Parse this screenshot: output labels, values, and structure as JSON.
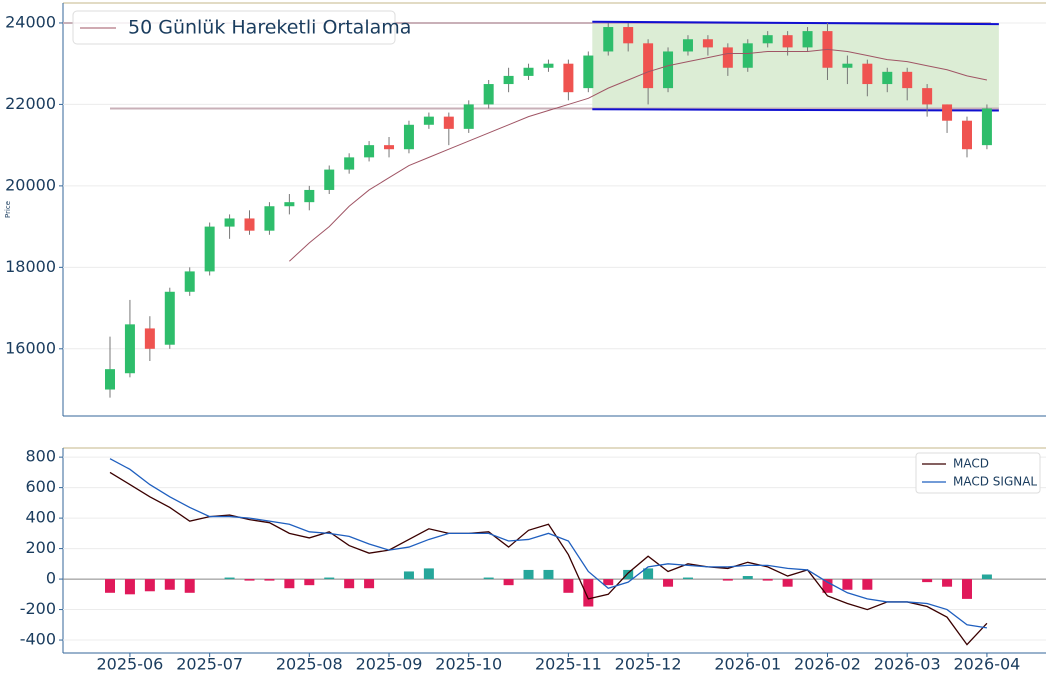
{
  "chart_data": [
    {
      "type": "candlestick",
      "ylabel": "Price",
      "open": [
        15000,
        15400,
        16500,
        16100,
        17400,
        17900,
        19000,
        19200,
        18900,
        19500,
        19600,
        19900,
        20400,
        20700,
        21000,
        20900,
        21500,
        21700,
        21400,
        22000,
        22500,
        22700,
        22900,
        23000,
        22400,
        23300,
        23900,
        23500,
        22400,
        23300,
        23600,
        23400,
        22900,
        23500,
        23700,
        23400,
        23800,
        22900,
        23000,
        22500,
        22800,
        22400,
        22000,
        21600,
        21000
      ],
      "high": [
        16300,
        17200,
        16800,
        17500,
        18000,
        19100,
        19300,
        19400,
        19600,
        19800,
        20000,
        20500,
        20800,
        21100,
        21200,
        21600,
        21800,
        21800,
        22100,
        22600,
        22900,
        23000,
        23100,
        23100,
        23300,
        24000,
        24000,
        23600,
        23400,
        23700,
        23700,
        23500,
        23600,
        23800,
        23800,
        23900,
        24000,
        23200,
        23100,
        22900,
        22900,
        22500,
        22000,
        21700,
        22000
      ],
      "low": [
        14800,
        15300,
        15700,
        16000,
        17300,
        17800,
        18700,
        18800,
        18800,
        19300,
        19400,
        19800,
        20300,
        20600,
        20700,
        20800,
        21400,
        21000,
        21300,
        21900,
        22300,
        22600,
        22800,
        22100,
        22300,
        23200,
        23300,
        22000,
        22300,
        23200,
        23200,
        22700,
        22800,
        23400,
        23200,
        23300,
        22600,
        22500,
        22200,
        22300,
        22100,
        21700,
        21300,
        20700,
        20900
      ],
      "close": [
        15500,
        16600,
        16000,
        17400,
        17900,
        19000,
        19200,
        18900,
        19500,
        19600,
        19900,
        20400,
        20700,
        21000,
        20900,
        21500,
        21700,
        21400,
        22000,
        22500,
        22700,
        22900,
        23000,
        22300,
        23200,
        23900,
        23500,
        22400,
        23300,
        23600,
        23400,
        22900,
        23500,
        23700,
        23400,
        23800,
        22900,
        23000,
        22500,
        22800,
        22400,
        22000,
        21600,
        20900,
        21900
      ],
      "up_color": "#2ebd6b",
      "down_color": "#ef5350",
      "series": [
        {
          "name": "50 Günlük Hareketli Ortalama",
          "color": "#a05565",
          "values": [
            null,
            null,
            null,
            null,
            null,
            null,
            null,
            null,
            null,
            18150,
            18600,
            19000,
            19500,
            19900,
            20200,
            20500,
            20700,
            20900,
            21100,
            21300,
            21500,
            21700,
            21850,
            22000,
            22150,
            22400,
            22600,
            22800,
            22950,
            23050,
            23150,
            23250,
            23250,
            23300,
            23300,
            23300,
            23350,
            23300,
            23200,
            23100,
            23050,
            22950,
            22850,
            22700,
            22600
          ]
        }
      ],
      "hlines": [
        {
          "value": 24000,
          "x": [
            -2.4,
            44.2
          ],
          "color": "#c9b0b8"
        },
        {
          "value": 21900,
          "x": [
            0,
            44.6
          ],
          "color": "#c9b0b8"
        }
      ],
      "channel": {
        "x": [
          24.2,
          44.6
        ],
        "top": [
          24030,
          23970
        ],
        "bottom": [
          21880,
          21850
        ],
        "fill": "#dcedd5",
        "line_color": "#1010d0"
      },
      "ylim": [
        14350,
        24490
      ],
      "yticks": [
        16000,
        18000,
        20000,
        22000,
        24000
      ],
      "grid": true,
      "legend": "upper left"
    },
    {
      "type": "macd",
      "categories": [
        null,
        "2025-06",
        null,
        null,
        null,
        "2025-07",
        null,
        null,
        null,
        null,
        "2025-08",
        null,
        null,
        null,
        "2025-09",
        null,
        null,
        null,
        "2025-10",
        null,
        null,
        null,
        null,
        "2025-11",
        null,
        null,
        null,
        "2025-12",
        null,
        null,
        null,
        null,
        "2026-01",
        null,
        null,
        null,
        "2026-02",
        null,
        null,
        null,
        "2026-03",
        null,
        null,
        null,
        "2026-04"
      ],
      "series": [
        {
          "name": "MACD",
          "color": "#3a0000",
          "values": [
            700,
            620,
            540,
            470,
            380,
            410,
            420,
            390,
            370,
            300,
            270,
            310,
            220,
            170,
            190,
            260,
            330,
            300,
            300,
            310,
            210,
            320,
            360,
            160,
            -130,
            -100,
            40,
            150,
            50,
            100,
            80,
            70,
            110,
            80,
            20,
            60,
            -110,
            -160,
            -200,
            -150,
            -150,
            -180,
            -250,
            -430,
            -290
          ]
        },
        {
          "name": "MACD SIGNAL",
          "color": "#1f5fbf",
          "values": [
            790,
            720,
            620,
            540,
            470,
            410,
            410,
            400,
            380,
            360,
            310,
            300,
            280,
            230,
            190,
            210,
            260,
            300,
            300,
            300,
            250,
            260,
            300,
            250,
            50,
            -60,
            -20,
            80,
            100,
            90,
            80,
            80,
            90,
            90,
            70,
            60,
            -20,
            -90,
            -130,
            -150,
            -150,
            -160,
            -200,
            -300,
            -320
          ]
        }
      ],
      "histogram": {
        "values": [
          -90,
          -100,
          -80,
          -70,
          -90,
          0,
          10,
          -10,
          -10,
          -60,
          -40,
          10,
          -60,
          -60,
          0,
          50,
          70,
          0,
          0,
          10,
          -40,
          60,
          60,
          -90,
          -180,
          -40,
          60,
          70,
          -50,
          10,
          0,
          -10,
          20,
          -10,
          -50,
          0,
          -90,
          -70,
          -70,
          0,
          0,
          -20,
          -50,
          -130,
          30
        ],
        "pos_color": "#26a69a",
        "neg_color": "#e0195a"
      },
      "ylim": [
        -485,
        860
      ],
      "yticks": [
        -400,
        -200,
        0,
        200,
        400,
        600,
        800
      ],
      "grid": true,
      "legend": "upper right"
    }
  ]
}
